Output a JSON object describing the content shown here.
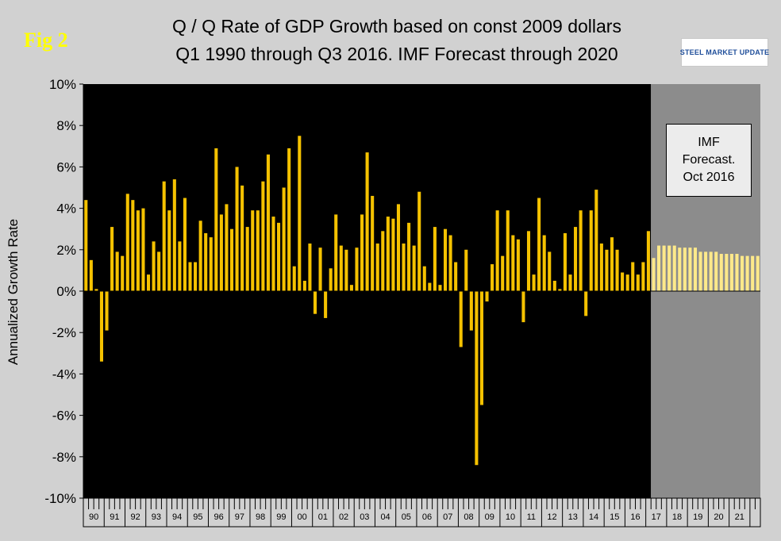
{
  "figure_label": "Fig 2",
  "title_line1": "Q / Q Rate of GDP Growth based on const 2009 dollars",
  "title_line2": "Q1 1990 through Q3 2016. IMF Forecast through 2020",
  "logo_text": "STEEL MARKET UPDATE",
  "forecast_box": [
    "IMF",
    "Forecast.",
    "Oct 2016"
  ],
  "colors": {
    "plot_background": "#000000",
    "forecast_background": "#8c8c8c",
    "actual_bar": "#f5c200",
    "forecast_bar": "#fde98a",
    "figure_background": "#d1d1d1",
    "figure_label": "#ffff00"
  },
  "chart_data": {
    "type": "bar",
    "ylabel": "Annualized Growth Rate",
    "xlabel": "",
    "ylim": [
      -10,
      10
    ],
    "y_ticks": [
      "-10%",
      "-8%",
      "-6%",
      "-4%",
      "-2%",
      "0%",
      "2%",
      "4%",
      "6%",
      "8%",
      "10%"
    ],
    "x_tick_labels": [
      "90",
      "91",
      "92",
      "93",
      "94",
      "95",
      "96",
      "97",
      "98",
      "99",
      "00",
      "01",
      "02",
      "03",
      "04",
      "05",
      "06",
      "07",
      "08",
      "09",
      "10",
      "11",
      "12",
      "13",
      "14",
      "15",
      "16",
      "17",
      "18",
      "19",
      "20",
      "21"
    ],
    "grid": false,
    "legend": false,
    "quarters_per_year": 4,
    "series": [
      {
        "values": [
          4.4,
          1.5,
          0.1,
          -3.4,
          -1.9,
          3.1,
          1.9,
          1.7,
          4.7,
          4.4,
          3.9,
          4.0,
          0.8,
          2.4,
          1.9,
          5.3,
          3.9,
          5.4,
          2.4,
          4.5,
          1.4,
          1.4,
          3.4,
          2.8,
          2.6,
          6.9,
          3.7,
          4.2,
          3.0,
          6.0,
          5.1,
          3.1,
          3.9,
          3.9,
          5.3,
          6.6,
          3.6,
          3.3,
          5.0,
          6.9,
          1.2,
          7.5,
          0.5,
          2.3,
          -1.1,
          2.1,
          -1.3,
          1.1,
          3.7,
          2.2,
          2.0,
          0.3,
          2.1,
          3.7,
          6.7,
          4.6,
          2.3,
          2.9,
          3.6,
          3.5,
          4.2,
          2.3,
          3.3,
          2.2,
          4.8,
          1.2,
          0.4,
          3.1,
          0.3,
          3.0,
          2.7,
          1.4,
          -2.7,
          2.0,
          -1.9,
          -8.4,
          -5.5,
          -0.5,
          1.3,
          3.9,
          1.7,
          3.9,
          2.7,
          2.5,
          -1.5,
          2.9,
          0.8,
          4.5,
          2.7,
          1.9,
          0.5,
          0.1,
          2.8,
          0.8,
          3.1,
          3.9,
          -1.2,
          3.9,
          4.9,
          2.3,
          2.0,
          2.6,
          2.0,
          0.9,
          0.8,
          1.4,
          0.8,
          1.4,
          2.9
        ]
      },
      {
        "values": [
          1.6,
          2.2,
          2.2,
          2.2,
          2.2,
          2.1,
          2.1,
          2.1,
          2.1,
          1.9,
          1.9,
          1.9,
          1.9,
          1.8,
          1.8,
          1.8,
          1.8,
          1.7,
          1.7,
          1.7,
          1.7
        ]
      }
    ]
  }
}
